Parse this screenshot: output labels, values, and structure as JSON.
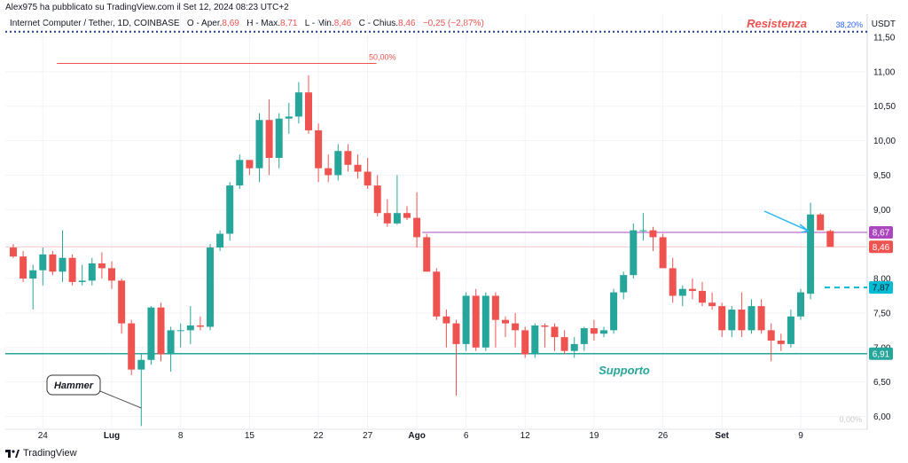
{
  "header": {
    "published": "Alex975 ha pubblicato su TradingView.com il Set 12, 2024 08:23 UTC+2",
    "symbol": "Internet Computer / Tether, 1D, COINBASE",
    "o_label": "O - Aper.",
    "o_value": "8,69",
    "h_label": "H - Max.",
    "h_value": "8,71",
    "l_label": "L - Min.",
    "l_value": "8,46",
    "c_label": "C - Chius.",
    "c_value": "8,46",
    "change": "−0,25 (−2,87%)",
    "currency": "USDT"
  },
  "footer": {
    "brand": "TradingView"
  },
  "colors": {
    "up": "#26a69a",
    "down": "#ef5350",
    "support": "#26a69a",
    "resistance_line": "#1e3a8a",
    "fib50": "#ef5350",
    "purple": "#ab47bc",
    "arrow": "#29b6f6",
    "grid": "#f0f3fa",
    "text": "#131722",
    "muted": "#787b86"
  },
  "chart_data": {
    "type": "candlestick",
    "ylim": [
      5.9,
      11.9
    ],
    "y_ticks": [
      6.0,
      6.5,
      7.0,
      7.5,
      8.0,
      8.5,
      9.0,
      9.5,
      10.0,
      10.5,
      11.0,
      11.5
    ],
    "y_tick_labels": [
      "6,00",
      "6,50",
      "7,00",
      "7,50",
      "8,00",
      "8,50",
      "9,00",
      "9,50",
      "10,00",
      "10,50",
      "11,00",
      "11,50"
    ],
    "x_ticks": [
      {
        "index": 3,
        "label": "24",
        "bold": false
      },
      {
        "index": 10,
        "label": "Lug",
        "bold": true
      },
      {
        "index": 17,
        "label": "8",
        "bold": false
      },
      {
        "index": 24,
        "label": "15",
        "bold": false
      },
      {
        "index": 31,
        "label": "22",
        "bold": false
      },
      {
        "index": 36,
        "label": "27",
        "bold": false
      },
      {
        "index": 41,
        "label": "Ago",
        "bold": true
      },
      {
        "index": 46,
        "label": "6",
        "bold": false
      },
      {
        "index": 52,
        "label": "12",
        "bold": false
      },
      {
        "index": 59,
        "label": "19",
        "bold": false
      },
      {
        "index": 66,
        "label": "26",
        "bold": false
      },
      {
        "index": 72,
        "label": "Set",
        "bold": true
      },
      {
        "index": 80,
        "label": "9",
        "bold": false
      }
    ],
    "candles": [
      [
        8.45,
        8.5,
        8.3,
        8.32
      ],
      [
        8.32,
        8.4,
        7.95,
        8.0
      ],
      [
        8.0,
        8.2,
        7.55,
        8.12
      ],
      [
        8.12,
        8.45,
        7.9,
        8.35
      ],
      [
        8.35,
        8.4,
        8.05,
        8.1
      ],
      [
        8.1,
        8.7,
        7.95,
        8.3
      ],
      [
        8.3,
        8.35,
        7.9,
        7.95
      ],
      [
        7.95,
        8.2,
        7.9,
        7.97
      ],
      [
        7.97,
        8.3,
        7.9,
        8.22
      ],
      [
        8.22,
        8.38,
        8.0,
        8.15
      ],
      [
        8.15,
        8.25,
        7.85,
        7.97
      ],
      [
        7.97,
        8.0,
        7.2,
        7.35
      ],
      [
        7.35,
        7.4,
        6.6,
        6.68
      ],
      [
        6.68,
        6.9,
        5.86,
        6.82
      ],
      [
        6.82,
        7.6,
        6.75,
        7.58
      ],
      [
        7.58,
        7.65,
        6.8,
        6.9
      ],
      [
        6.9,
        7.3,
        6.65,
        7.25
      ],
      [
        7.25,
        7.35,
        7.0,
        7.25
      ],
      [
        7.25,
        7.6,
        7.05,
        7.32
      ],
      [
        7.32,
        7.45,
        7.25,
        7.3
      ],
      [
        7.3,
        8.5,
        7.25,
        8.45
      ],
      [
        8.45,
        8.7,
        8.4,
        8.65
      ],
      [
        8.65,
        9.4,
        8.55,
        9.35
      ],
      [
        9.35,
        9.8,
        9.3,
        9.72
      ],
      [
        9.72,
        9.7,
        9.5,
        9.6
      ],
      [
        9.6,
        10.4,
        9.4,
        10.3
      ],
      [
        10.3,
        10.6,
        9.5,
        9.75
      ],
      [
        9.75,
        10.4,
        9.6,
        10.32
      ],
      [
        10.32,
        10.55,
        10.1,
        10.35
      ],
      [
        10.35,
        10.85,
        10.25,
        10.7
      ],
      [
        10.7,
        10.95,
        10.1,
        10.15
      ],
      [
        10.15,
        10.25,
        9.4,
        9.6
      ],
      [
        9.6,
        9.8,
        9.4,
        9.5
      ],
      [
        9.5,
        9.95,
        9.42,
        9.85
      ],
      [
        9.85,
        9.95,
        9.55,
        9.65
      ],
      [
        9.65,
        9.8,
        9.45,
        9.55
      ],
      [
        9.55,
        9.75,
        9.3,
        9.35
      ],
      [
        9.35,
        9.5,
        8.9,
        8.95
      ],
      [
        8.95,
        9.15,
        8.75,
        8.8
      ],
      [
        8.8,
        9.5,
        8.78,
        8.95
      ],
      [
        8.95,
        9.05,
        8.85,
        8.88
      ],
      [
        8.88,
        9.25,
        8.45,
        8.6
      ],
      [
        8.6,
        8.65,
        8.1,
        8.1
      ],
      [
        8.1,
        8.15,
        7.4,
        7.45
      ],
      [
        7.45,
        7.55,
        7.0,
        7.35
      ],
      [
        7.35,
        7.4,
        6.3,
        7.05
      ],
      [
        7.05,
        7.8,
        6.95,
        7.75
      ],
      [
        7.75,
        7.85,
        6.95,
        7.0
      ],
      [
        7.0,
        7.8,
        6.95,
        7.75
      ],
      [
        7.75,
        7.8,
        7.0,
        7.4
      ],
      [
        7.4,
        7.45,
        7.15,
        7.35
      ],
      [
        7.35,
        7.5,
        7.0,
        7.25
      ],
      [
        7.25,
        7.3,
        6.85,
        6.9
      ],
      [
        6.9,
        7.35,
        6.85,
        7.32
      ],
      [
        7.32,
        7.35,
        7.0,
        7.3
      ],
      [
        7.3,
        7.35,
        6.95,
        7.15
      ],
      [
        7.15,
        7.25,
        6.9,
        6.95
      ],
      [
        6.95,
        7.15,
        6.85,
        7.05
      ],
      [
        7.05,
        7.3,
        6.95,
        7.28
      ],
      [
        7.28,
        7.4,
        7.1,
        7.2
      ],
      [
        7.2,
        7.3,
        7.15,
        7.25
      ],
      [
        7.25,
        7.85,
        7.2,
        7.8
      ],
      [
        7.8,
        8.1,
        7.7,
        8.05
      ],
      [
        8.05,
        8.8,
        8.0,
        8.7
      ],
      [
        8.7,
        8.95,
        8.55,
        8.7
      ],
      [
        8.7,
        8.75,
        8.4,
        8.6
      ],
      [
        8.6,
        8.65,
        8.2,
        8.15
      ],
      [
        8.15,
        8.3,
        7.65,
        7.75
      ],
      [
        7.75,
        7.9,
        7.6,
        7.85
      ],
      [
        7.85,
        8.0,
        7.7,
        7.82
      ],
      [
        7.82,
        7.95,
        7.6,
        7.65
      ],
      [
        7.65,
        7.8,
        7.55,
        7.6
      ],
      [
        7.6,
        7.65,
        7.15,
        7.25
      ],
      [
        7.25,
        7.6,
        7.15,
        7.55
      ],
      [
        7.55,
        7.8,
        7.15,
        7.25
      ],
      [
        7.25,
        7.7,
        7.2,
        7.6
      ],
      [
        7.6,
        7.7,
        7.2,
        7.25
      ],
      [
        7.25,
        7.35,
        6.8,
        7.1
      ],
      [
        7.1,
        7.2,
        6.95,
        7.05
      ],
      [
        7.05,
        7.55,
        7.0,
        7.45
      ],
      [
        7.45,
        7.85,
        7.4,
        7.8
      ],
      [
        7.78,
        9.1,
        7.7,
        8.93
      ],
      [
        8.93,
        8.95,
        8.7,
        8.7
      ],
      [
        8.69,
        8.71,
        8.46,
        8.46
      ]
    ],
    "annotations": {
      "resistance": {
        "value": 11.58,
        "label": "Resistenza",
        "fib": "38,20%"
      },
      "fib50": {
        "value": 11.12,
        "label": "50,00%",
        "start_index": 2,
        "end_index": 36
      },
      "fib0": {
        "label": "0,00%"
      },
      "support": {
        "value": 6.91,
        "label": "Supporto",
        "price_label": "6,91"
      },
      "purple_line": {
        "value": 8.67,
        "start_index": 42,
        "price_label": "8,67"
      },
      "last_price": {
        "value": 8.46,
        "price_label": "8,46"
      },
      "dashed_target": {
        "value": 7.87,
        "price_label": "7,87"
      },
      "hammer": {
        "label": "Hammer",
        "target_index": 13
      },
      "arrow_target_index": 81
    }
  }
}
